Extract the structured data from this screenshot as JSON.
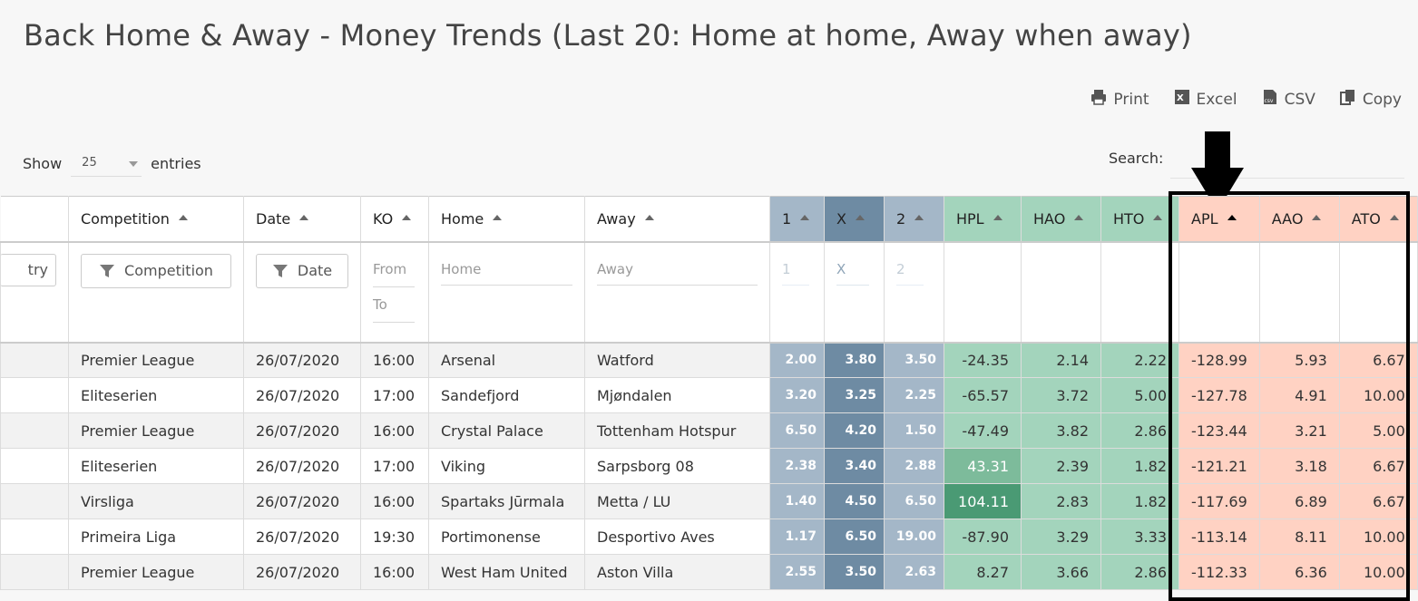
{
  "title": "Back Home & Away - Money Trends (Last 20: Home at home, Away when away)",
  "toolbar": {
    "print": "Print",
    "excel": "Excel",
    "csv": "CSV",
    "copy": "Copy"
  },
  "length": {
    "show": "Show",
    "value": "25",
    "entries": "entries"
  },
  "search": {
    "label": "Search:"
  },
  "columns": [
    "Competition",
    "Date",
    "KO",
    "Home",
    "Away",
    "1",
    "X",
    "2",
    "HPL",
    "HAO",
    "HTO",
    "APL",
    "AAO",
    "ATO"
  ],
  "filters": {
    "country": "try",
    "competition": "Competition",
    "date": "Date",
    "from": "From",
    "to": "To",
    "home": "Home",
    "away": "Away",
    "one": "1",
    "x": "X",
    "two": "2"
  },
  "rows": [
    {
      "competition": "Premier League",
      "date": "26/07/2020",
      "ko": "16:00",
      "home": "Arsenal",
      "away": "Watford",
      "o1": "2.00",
      "ox": "3.80",
      "o2": "3.50",
      "hpl": "-24.35",
      "hao": "2.14",
      "hto": "2.22",
      "apl": "-128.99",
      "aao": "5.93",
      "ato": "6.67"
    },
    {
      "competition": "Eliteserien",
      "date": "26/07/2020",
      "ko": "17:00",
      "home": "Sandefjord",
      "away": "Mjøndalen",
      "o1": "3.20",
      "ox": "3.25",
      "o2": "2.25",
      "hpl": "-65.57",
      "hao": "3.72",
      "hto": "5.00",
      "apl": "-127.78",
      "aao": "4.91",
      "ato": "10.00"
    },
    {
      "competition": "Premier League",
      "date": "26/07/2020",
      "ko": "16:00",
      "home": "Crystal Palace",
      "away": "Tottenham Hotspur",
      "o1": "6.50",
      "ox": "4.20",
      "o2": "1.50",
      "hpl": "-47.49",
      "hao": "3.82",
      "hto": "2.86",
      "apl": "-123.44",
      "aao": "3.21",
      "ato": "5.00"
    },
    {
      "competition": "Eliteserien",
      "date": "26/07/2020",
      "ko": "17:00",
      "home": "Viking",
      "away": "Sarpsborg 08",
      "o1": "2.38",
      "ox": "3.40",
      "o2": "2.88",
      "hpl": "43.31",
      "hao": "2.39",
      "hto": "1.82",
      "apl": "-121.21",
      "aao": "3.18",
      "ato": "6.67"
    },
    {
      "competition": "Virsliga",
      "date": "26/07/2020",
      "ko": "16:00",
      "home": "Spartaks Jūrmala",
      "away": "Metta / LU",
      "o1": "1.40",
      "ox": "4.50",
      "o2": "6.50",
      "hpl": "104.11",
      "hao": "2.83",
      "hto": "1.82",
      "apl": "-117.69",
      "aao": "6.89",
      "ato": "6.67"
    },
    {
      "competition": "Primeira Liga",
      "date": "26/07/2020",
      "ko": "19:30",
      "home": "Portimonense",
      "away": "Desportivo Aves",
      "o1": "1.17",
      "ox": "6.50",
      "o2": "19.00",
      "hpl": "-87.90",
      "hao": "3.29",
      "hto": "3.33",
      "apl": "-113.14",
      "aao": "8.11",
      "ato": "10.00"
    },
    {
      "competition": "Premier League",
      "date": "26/07/2020",
      "ko": "16:00",
      "home": "West Ham United",
      "away": "Aston Villa",
      "o1": "2.55",
      "ox": "3.50",
      "o2": "2.63",
      "hpl": "8.27",
      "hao": "3.66",
      "hto": "2.86",
      "apl": "-112.33",
      "aao": "6.36",
      "ato": "10.00"
    }
  ]
}
